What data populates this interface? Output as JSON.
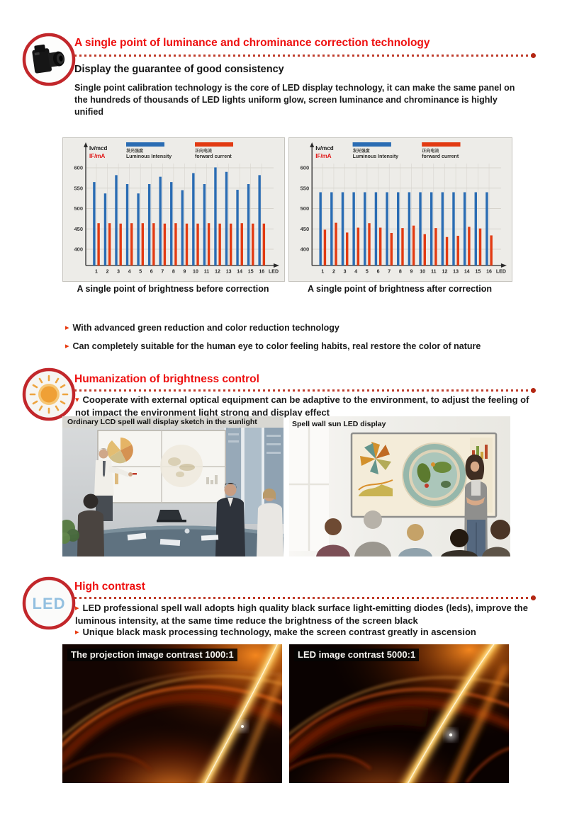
{
  "page": {
    "background": "#ffffff",
    "accent_red": "#ee0f0f",
    "divider_red": "#bf3b2a",
    "bullet_red": "#e8380d",
    "chart_blue": "#2a6cb3",
    "chart_red": "#e23a12"
  },
  "section_correction": {
    "icon": "camera-icon",
    "title": "A single point of luminance and chrominance correction technology",
    "subtitle": "Display the guarantee of good consistency",
    "body": "Single point calibration technology is the core of LED display technology, it can make the same panel on the hundreds of thousands of LED lights uniform glow, screen luminance and chrominance is highly unified",
    "bullet_1": "With advanced green reduction and color reduction technology",
    "bullet_2": "Can completely suitable for the human eye to color feeling habits, real restore the color of nature"
  },
  "section_brightness": {
    "icon": "sun-icon",
    "title": "Humanization of brightness control",
    "bullet_1": "Cooperate with external optical equipment can be adaptive to the environment, to adjust the feeling of not impact the environment light strong and display effect",
    "photo_left_label": "Ordinary LCD spell wall display sketch in the sunlight",
    "photo_right_label": "Spell wall sun LED display"
  },
  "section_contrast": {
    "icon": "led-icon",
    "icon_text": "LED",
    "title": "High contrast",
    "bullet_1": "LED professional spell wall adopts high quality black surface light-emitting diodes (leds), improve the luminous intensity, at the same time reduce the brightness of the screen black",
    "bullet_2": "Unique black mask processing technology, make the screen contrast greatly in ascension",
    "image_left_label": "The projection image contrast 1000:1",
    "image_right_label": "LED image contrast 5000:1"
  },
  "chart_data": [
    {
      "type": "bar",
      "title": "A single point of brightness before correction",
      "x_categories": [
        "1",
        "2",
        "3",
        "4",
        "5",
        "6",
        "7",
        "8",
        "9",
        "10",
        "11",
        "12",
        "13",
        "14",
        "15",
        "16"
      ],
      "xlabel": "LED",
      "y_axis_labels": [
        {
          "text": "Iv/mcd",
          "color": "#1a1a1a"
        },
        {
          "text": "IF/mA",
          "color": "#e01515"
        }
      ],
      "yticks": [
        400,
        450,
        500,
        550,
        600
      ],
      "ylim": [
        360,
        625
      ],
      "grid": true,
      "legend_position": "top",
      "series": [
        {
          "name_cn": "发光强度",
          "name_en": "Luminous Intensity",
          "color": "#2a6cb3",
          "values": [
            565,
            537,
            582,
            560,
            537,
            560,
            578,
            565,
            545,
            587,
            560,
            601,
            590,
            546,
            560,
            582
          ]
        },
        {
          "name_cn": "正向电流",
          "name_en": "forward current",
          "color": "#e23a12",
          "values": [
            464,
            464,
            463,
            464,
            464,
            464,
            463,
            464,
            463,
            463,
            464,
            463,
            463,
            464,
            463,
            463
          ]
        }
      ]
    },
    {
      "type": "bar",
      "title": "A single point of brightness after correction",
      "x_categories": [
        "1",
        "2",
        "3",
        "4",
        "5",
        "6",
        "7",
        "8",
        "9",
        "10",
        "11",
        "12",
        "13",
        "14",
        "15",
        "16"
      ],
      "xlabel": "LED",
      "y_axis_labels": [
        {
          "text": "Iv/mcd",
          "color": "#1a1a1a"
        },
        {
          "text": "IF/mA",
          "color": "#e01515"
        }
      ],
      "yticks": [
        400,
        450,
        500,
        550,
        600
      ],
      "ylim": [
        360,
        625
      ],
      "grid": true,
      "legend_position": "top",
      "series": [
        {
          "name_cn": "发光强度",
          "name_en": "Luminous Intensity",
          "color": "#2a6cb3",
          "values": [
            540,
            540,
            540,
            540,
            540,
            540,
            540,
            540,
            540,
            540,
            540,
            540,
            540,
            540,
            540,
            540
          ]
        },
        {
          "name_cn": "正向电流",
          "name_en": "forward current",
          "color": "#e23a12",
          "values": [
            448,
            465,
            441,
            453,
            464,
            453,
            440,
            452,
            458,
            437,
            452,
            430,
            433,
            455,
            451,
            434
          ]
        }
      ]
    }
  ]
}
